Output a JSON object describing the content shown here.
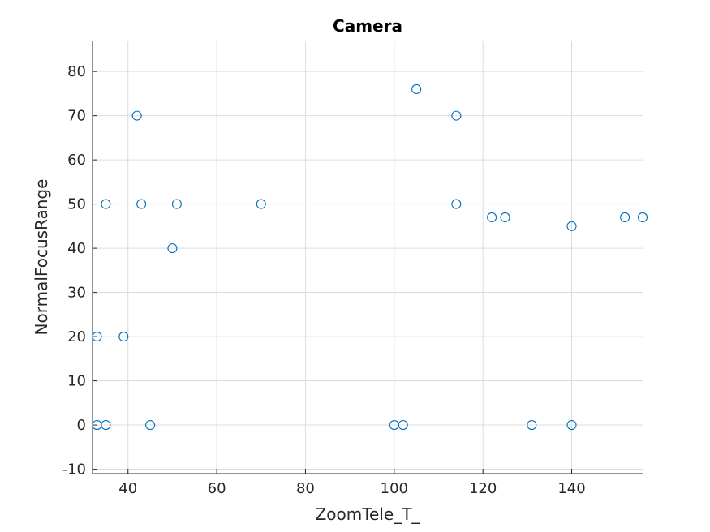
{
  "chart_data": {
    "type": "scatter",
    "title": "Camera",
    "xlabel": "ZoomTele_T_",
    "ylabel": "NormalFocusRange",
    "xlim": [
      32,
      156
    ],
    "ylim": [
      -11,
      87
    ],
    "xticks": [
      40,
      60,
      80,
      100,
      120,
      140
    ],
    "yticks": [
      -10,
      0,
      10,
      20,
      30,
      40,
      50,
      60,
      70,
      80
    ],
    "grid": true,
    "marker": "circle-open",
    "color": "#0072bd",
    "points": [
      {
        "x": 33,
        "y": 20
      },
      {
        "x": 33,
        "y": 0
      },
      {
        "x": 35,
        "y": 50
      },
      {
        "x": 35,
        "y": 0
      },
      {
        "x": 39,
        "y": 20
      },
      {
        "x": 42,
        "y": 70
      },
      {
        "x": 43,
        "y": 50
      },
      {
        "x": 45,
        "y": 0
      },
      {
        "x": 50,
        "y": 40
      },
      {
        "x": 51,
        "y": 50
      },
      {
        "x": 70,
        "y": 50
      },
      {
        "x": 100,
        "y": 0
      },
      {
        "x": 102,
        "y": 0
      },
      {
        "x": 105,
        "y": 76
      },
      {
        "x": 114,
        "y": 70
      },
      {
        "x": 114,
        "y": 50
      },
      {
        "x": 122,
        "y": 47
      },
      {
        "x": 125,
        "y": 47
      },
      {
        "x": 131,
        "y": 0
      },
      {
        "x": 140,
        "y": 45
      },
      {
        "x": 140,
        "y": 0
      },
      {
        "x": 152,
        "y": 47
      },
      {
        "x": 156,
        "y": 47
      }
    ]
  }
}
